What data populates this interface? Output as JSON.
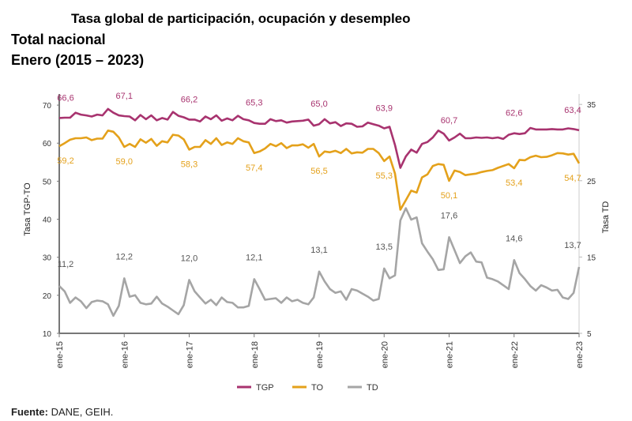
{
  "title": "Tasa global de participación, ocupación y desempleo",
  "subtitle1": "Total nacional",
  "subtitle2": "Enero (2015 – 2023)",
  "source_label": "Fuente:",
  "source_text": "DANE, GEIH.",
  "chart_data": {
    "type": "line",
    "title": "Tasa global de participación, ocupación y desempleo",
    "ylabel": "Tasa TGP-TO",
    "y2label": "Tasa TD",
    "ylim": [
      10,
      75
    ],
    "y2lim": [
      5,
      37.4
    ],
    "yticks": [
      10,
      20,
      30,
      40,
      50,
      60,
      70
    ],
    "y2ticks": [
      5,
      15,
      25,
      35
    ],
    "xticks": [
      "ene-15",
      "ene-16",
      "ene-17",
      "ene-18",
      "ene-19",
      "ene-20",
      "ene-21",
      "ene-22",
      "ene-23"
    ],
    "x_note": "monthly, Jan 2015 – Jan 2023",
    "legend_position": "bottom",
    "series": [
      {
        "name": "TGP",
        "axis": "left",
        "color": "#a8336f",
        "labels": [
          "66,6",
          "67,1",
          "66,2",
          "65,3",
          "65,0",
          "63,9",
          "60,7",
          "62,6",
          "63,4"
        ],
        "values": [
          66.6,
          66.7,
          66.7,
          68.0,
          67.5,
          67.3,
          67.0,
          67.5,
          67.3,
          69.0,
          68.0,
          67.3,
          67.1,
          67.0,
          66.0,
          67.4,
          66.3,
          67.3,
          66.0,
          66.6,
          66.2,
          68.2,
          67.2,
          66.8,
          66.2,
          66.2,
          65.7,
          67.0,
          66.3,
          67.3,
          65.9,
          66.5,
          66.0,
          67.2,
          66.3,
          66.0,
          65.3,
          65.1,
          65.1,
          66.3,
          65.8,
          66.0,
          65.4,
          65.7,
          65.8,
          65.9,
          66.2,
          64.6,
          65.0,
          66.3,
          65.2,
          65.5,
          64.5,
          65.2,
          65.1,
          64.3,
          64.4,
          65.4,
          65.0,
          64.6,
          63.9,
          64.3,
          59.5,
          53.5,
          56.5,
          58.3,
          57.5,
          59.8,
          60.3,
          61.5,
          63.3,
          62.5,
          60.7,
          61.5,
          62.5,
          61.3,
          61.3,
          61.5,
          61.4,
          61.5,
          61.3,
          61.5,
          61.1,
          62.2,
          62.6,
          62.4,
          62.6,
          64.0,
          63.6,
          63.6,
          63.6,
          63.7,
          63.6,
          63.6,
          63.9,
          63.7,
          63.4
        ]
      },
      {
        "name": "TO",
        "axis": "left",
        "color": "#e4a11b",
        "labels": [
          "59,2",
          "59,0",
          "58,3",
          "57,4",
          "56,5",
          "55,3",
          "50,1",
          "53,4",
          "54,7"
        ],
        "values": [
          59.2,
          60.0,
          60.9,
          61.3,
          61.3,
          61.5,
          60.8,
          61.2,
          61.2,
          63.3,
          63.0,
          61.5,
          59.0,
          59.8,
          59.0,
          61.0,
          60.1,
          61.1,
          59.3,
          60.5,
          60.2,
          62.2,
          62.0,
          61.0,
          58.3,
          59.0,
          59.0,
          60.8,
          59.8,
          61.3,
          59.5,
          60.2,
          59.8,
          61.3,
          60.5,
          60.2,
          57.4,
          57.8,
          58.6,
          59.8,
          59.2,
          60.0,
          58.7,
          59.4,
          59.4,
          59.7,
          58.8,
          59.8,
          56.5,
          57.8,
          57.6,
          58.0,
          57.4,
          58.5,
          57.3,
          57.6,
          57.5,
          58.5,
          58.5,
          57.4,
          55.3,
          56.5,
          52.0,
          42.5,
          45.0,
          47.5,
          47.0,
          51.0,
          51.8,
          54.0,
          54.5,
          54.3,
          50.1,
          52.8,
          52.4,
          51.6,
          51.8,
          52.0,
          52.4,
          52.7,
          52.9,
          53.5,
          54.0,
          54.5,
          53.4,
          55.6,
          55.5,
          56.3,
          56.7,
          56.3,
          56.4,
          56.8,
          57.4,
          57.3,
          57.0,
          57.2,
          54.7
        ]
      },
      {
        "name": "TD",
        "axis": "right",
        "color": "#a5a5a5",
        "labels": [
          "11,2",
          "12,2",
          "12,0",
          "12,1",
          "13,1",
          "13,5",
          "17,6",
          "14,6",
          "13,7"
        ],
        "values": [
          11.2,
          10.5,
          9.0,
          9.7,
          9.2,
          8.3,
          9.1,
          9.3,
          9.2,
          8.8,
          7.3,
          8.6,
          12.2,
          9.8,
          10.0,
          9.0,
          8.8,
          8.9,
          9.8,
          8.9,
          8.5,
          8.0,
          7.5,
          8.7,
          12.0,
          10.5,
          9.7,
          8.9,
          9.4,
          8.7,
          9.7,
          9.1,
          9.0,
          8.4,
          8.4,
          8.6,
          12.1,
          10.8,
          9.4,
          9.5,
          9.6,
          9.0,
          9.7,
          9.2,
          9.4,
          9.0,
          8.8,
          9.7,
          13.1,
          11.8,
          10.8,
          10.3,
          10.5,
          9.4,
          10.8,
          10.6,
          10.2,
          9.8,
          9.3,
          9.5,
          13.5,
          12.2,
          12.6,
          19.8,
          21.4,
          19.9,
          20.2,
          16.8,
          15.7,
          14.7,
          13.3,
          13.4,
          17.6,
          15.9,
          14.2,
          15.1,
          15.6,
          14.4,
          14.3,
          12.3,
          12.1,
          11.8,
          11.3,
          10.8,
          14.6,
          12.9,
          12.1,
          11.2,
          10.6,
          11.3,
          11.0,
          10.6,
          10.7,
          9.7,
          9.5,
          10.3,
          13.7
        ]
      }
    ]
  }
}
